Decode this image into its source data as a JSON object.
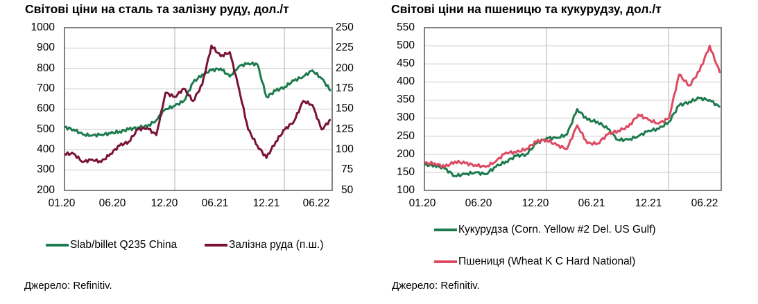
{
  "chart_data": [
    {
      "type": "line",
      "title": "Світові ціни на сталь та залізну руду, дол./т",
      "xlabel": "",
      "ylabel": "",
      "x_ticks": [
        "01.20",
        "06.20",
        "12.20",
        "06.21",
        "12.21",
        "06.22"
      ],
      "y_ticks_left": [
        "1000",
        "900",
        "800",
        "700",
        "600",
        "500",
        "400",
        "300",
        "200"
      ],
      "y_ticks_right": [
        "250",
        "225",
        "200",
        "175",
        "150",
        "125",
        "100",
        "75",
        "50"
      ],
      "ylim": [
        200,
        1000
      ],
      "ylim_right": [
        50,
        250
      ],
      "grid": true,
      "legend_position": "bottom",
      "x": [
        "01.20",
        "02.20",
        "03.20",
        "04.20",
        "05.20",
        "06.20",
        "07.20",
        "08.20",
        "09.20",
        "10.20",
        "11.20",
        "12.20",
        "01.21",
        "02.21",
        "03.21",
        "04.21",
        "05.21",
        "06.21",
        "07.21",
        "08.21",
        "09.21",
        "10.21",
        "11.21",
        "12.21",
        "01.22",
        "02.22",
        "03.22",
        "04.22",
        "05.22",
        "06.22"
      ],
      "series": [
        {
          "name": "Slab/billet Q235 China",
          "axis": "left",
          "color": "#1e7b4e",
          "values": [
            510,
            500,
            475,
            470,
            475,
            480,
            490,
            500,
            510,
            515,
            545,
            600,
            615,
            640,
            730,
            770,
            790,
            800,
            760,
            810,
            825,
            820,
            660,
            690,
            710,
            740,
            760,
            790,
            750,
            690
          ]
        },
        {
          "name": "Залізна руда (п.ш.)",
          "axis": "right",
          "color": "#7a1238",
          "values": [
            95,
            95,
            85,
            88,
            85,
            95,
            105,
            110,
            125,
            127,
            118,
            170,
            165,
            175,
            160,
            180,
            228,
            215,
            220,
            175,
            125,
            105,
            90,
            110,
            125,
            135,
            160,
            155,
            125,
            137
          ]
        }
      ]
    },
    {
      "type": "line",
      "title": "Світові ціни на пшеницю та кукурудзу, дол./т",
      "xlabel": "",
      "ylabel": "",
      "x_ticks": [
        "01.20",
        "06.20",
        "12.20",
        "06.21",
        "12.21",
        "06.22"
      ],
      "y_ticks_left": [
        "550",
        "500",
        "450",
        "400",
        "350",
        "300",
        "250",
        "200",
        "150",
        "100"
      ],
      "ylim": [
        100,
        550
      ],
      "grid": true,
      "legend_position": "bottom",
      "x": [
        "01.20",
        "02.20",
        "03.20",
        "04.20",
        "05.20",
        "06.20",
        "07.20",
        "08.20",
        "09.20",
        "10.20",
        "11.20",
        "12.20",
        "01.21",
        "02.21",
        "03.21",
        "04.21",
        "05.21",
        "06.21",
        "07.21",
        "08.21",
        "09.21",
        "10.21",
        "11.21",
        "12.21",
        "01.22",
        "02.22",
        "03.22",
        "04.22",
        "05.22",
        "06.22"
      ],
      "series": [
        {
          "name": "Кукурудза (Corn. Yellow #2 Del. US Gulf)",
          "color": "#1e7b4e",
          "values": [
            170,
            170,
            160,
            140,
            145,
            150,
            145,
            165,
            180,
            195,
            200,
            230,
            245,
            245,
            255,
            325,
            295,
            290,
            270,
            240,
            240,
            250,
            265,
            270,
            290,
            335,
            345,
            355,
            350,
            330
          ]
        },
        {
          "name": "Пшениця (Wheat K C Hard National)",
          "color": "#dd4a62",
          "values": [
            175,
            175,
            165,
            180,
            175,
            170,
            165,
            180,
            205,
            205,
            215,
            235,
            240,
            225,
            215,
            280,
            230,
            230,
            255,
            265,
            275,
            310,
            295,
            285,
            300,
            420,
            390,
            430,
            500,
            425
          ]
        }
      ]
    }
  ],
  "left": {
    "title": "Світові ціни на сталь та залізну руду, дол./т",
    "y_left": [
      "1000",
      "900",
      "800",
      "700",
      "600",
      "500",
      "400",
      "300",
      "200"
    ],
    "y_right": [
      "250",
      "225",
      "200",
      "175",
      "150",
      "125",
      "100",
      "75",
      "50"
    ],
    "x": [
      "01.20",
      "06.20",
      "12.20",
      "06.21",
      "12.21",
      "06.22"
    ],
    "legend": [
      "Slab/billet Q235 China",
      "Залізна руда (п.ш.)"
    ],
    "source": "Джерело: Refinitiv."
  },
  "right": {
    "title": "Світові ціни на пшеницю та кукурудзу, дол./т",
    "y_left": [
      "550",
      "500",
      "450",
      "400",
      "350",
      "300",
      "250",
      "200",
      "150",
      "100"
    ],
    "x": [
      "01.20",
      "06.20",
      "12.20",
      "06.21",
      "12.21",
      "06.22"
    ],
    "legend": [
      "Кукурудза (Corn. Yellow #2 Del. US Gulf)",
      "Пшениця (Wheat K C Hard National)"
    ],
    "source": "Джерело: Refinitiv."
  },
  "colors": {
    "green": "#1e7b4e",
    "maroon": "#7a1238",
    "pink": "#dd4a62",
    "grid": "#c8c8c8",
    "axis": "#595959"
  }
}
